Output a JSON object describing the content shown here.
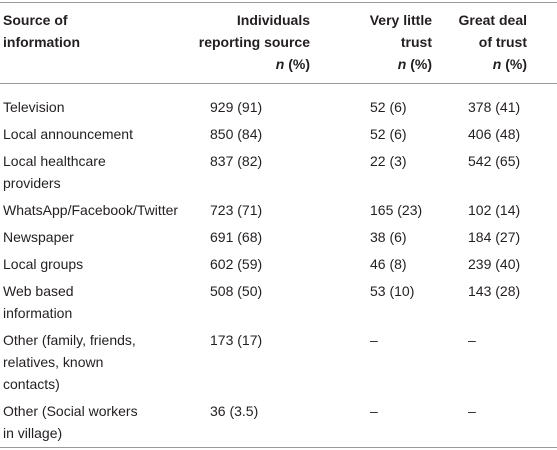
{
  "table": {
    "header": [
      [
        "Source of",
        "information"
      ],
      [
        "Individuals",
        "reporting source",
        "n (%)"
      ],
      [
        "Very little",
        "trust",
        "n (%)"
      ],
      [
        "Great deal",
        "of trust",
        "n (%)"
      ]
    ],
    "rows": [
      [
        [
          "Television"
        ],
        [
          "929 (91)"
        ],
        [
          "52 (6)"
        ],
        [
          "378 (41)"
        ]
      ],
      [
        [
          "Local announcement"
        ],
        [
          "850 (84)"
        ],
        [
          "52 (6)"
        ],
        [
          "406 (48)"
        ]
      ],
      [
        [
          "Local healthcare",
          "providers"
        ],
        [
          "837 (82)"
        ],
        [
          "22 (3)"
        ],
        [
          "542 (65)"
        ]
      ],
      [
        [
          "WhatsApp/Facebook/Twitter"
        ],
        [
          "723 (71)"
        ],
        [
          "165 (23)"
        ],
        [
          "102 (14)"
        ]
      ],
      [
        [
          "Newspaper"
        ],
        [
          "691 (68)"
        ],
        [
          "38 (6)"
        ],
        [
          "184 (27)"
        ]
      ],
      [
        [
          "Local groups"
        ],
        [
          "602 (59)"
        ],
        [
          "46 (8)"
        ],
        [
          "239 (40)"
        ]
      ],
      [
        [
          "Web based",
          "information"
        ],
        [
          "508 (50)"
        ],
        [
          "53 (10)"
        ],
        [
          "143 (28)"
        ]
      ],
      [
        [
          "Other (family, friends,",
          "relatives, known",
          "contacts)"
        ],
        [
          "173 (17)"
        ],
        [
          "–"
        ],
        [
          "–"
        ]
      ],
      [
        [
          "Other (Social workers",
          "in village)"
        ],
        [
          "36 (3.5)"
        ],
        [
          "–"
        ],
        [
          "–"
        ]
      ]
    ]
  }
}
